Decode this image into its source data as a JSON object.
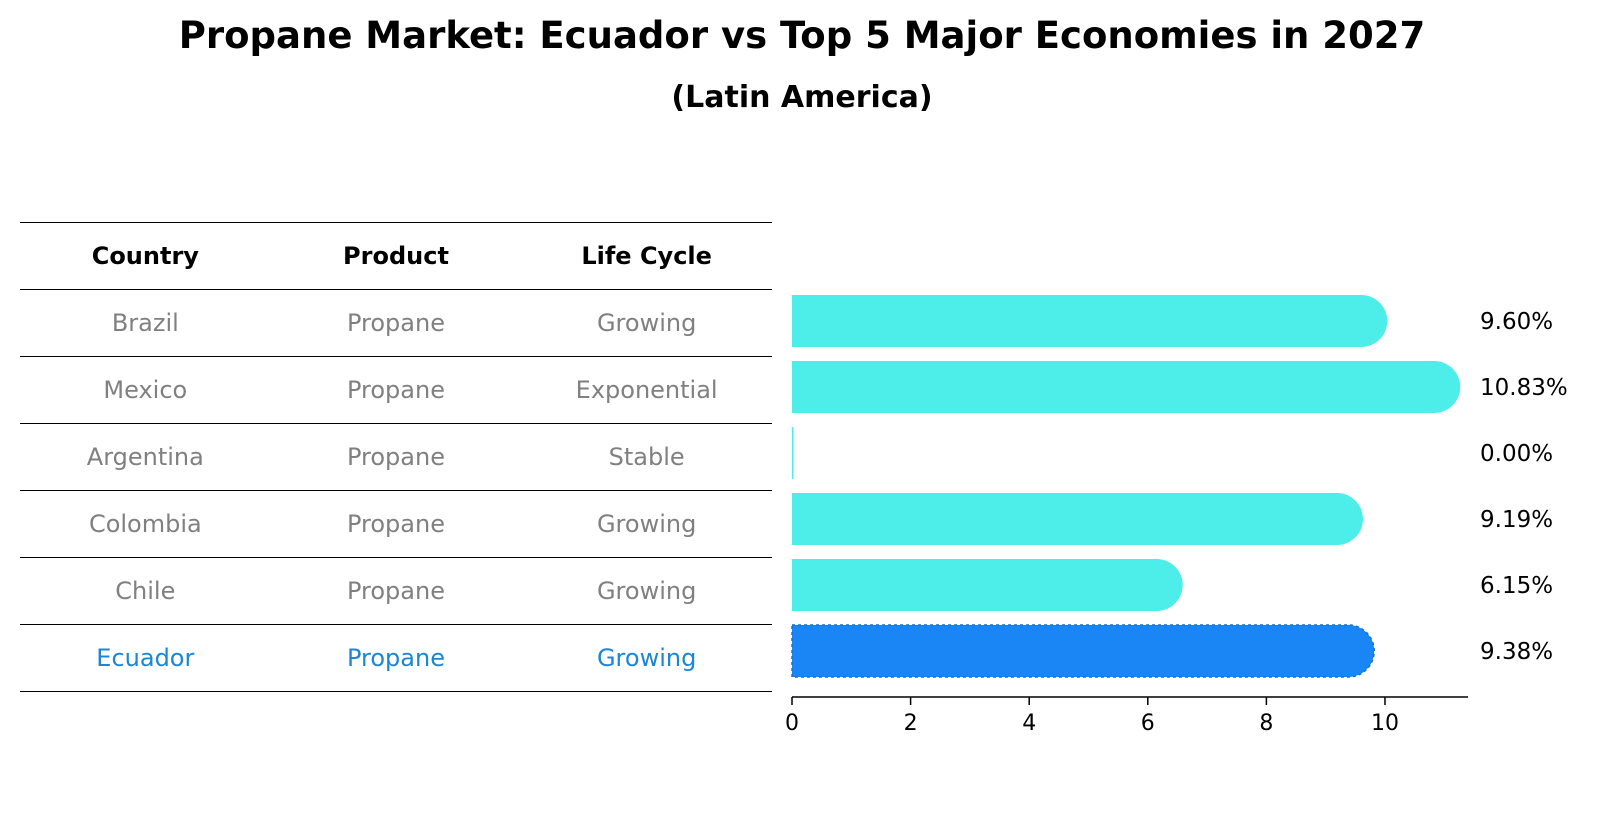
{
  "chart_data": {
    "type": "bar",
    "orientation": "horizontal",
    "title": "Propane Market: Ecuador vs Top 5 Major Economies in 2027",
    "subtitle": "(Latin America)",
    "table": {
      "headers": [
        "Country",
        "Product",
        "Life Cycle"
      ],
      "rows": [
        [
          "Brazil",
          "Propane",
          "Growing"
        ],
        [
          "Mexico",
          "Propane",
          "Exponential"
        ],
        [
          "Argentina",
          "Propane",
          "Stable"
        ],
        [
          "Colombia",
          "Propane",
          "Growing"
        ],
        [
          "Chile",
          "Propane",
          "Growing"
        ],
        [
          "Ecuador",
          "Propane",
          "Growing"
        ]
      ],
      "highlight_row": 5
    },
    "categories": [
      "Brazil",
      "Mexico",
      "Argentina",
      "Colombia",
      "Chile",
      "Ecuador"
    ],
    "values": [
      9.6,
      10.83,
      0.0,
      9.19,
      6.15,
      9.38
    ],
    "value_labels": [
      "9.60%",
      "10.83%",
      "0.00%",
      "9.19%",
      "6.15%",
      "9.38%"
    ],
    "xlim": [
      0,
      11.4
    ],
    "xticks": [
      0,
      2,
      4,
      6,
      8,
      10
    ],
    "grid": false,
    "colors": {
      "default": "#4deeea",
      "highlight": "#1a85f5",
      "highlight_text": "#1b86d6",
      "muted_text": "#808080"
    }
  }
}
